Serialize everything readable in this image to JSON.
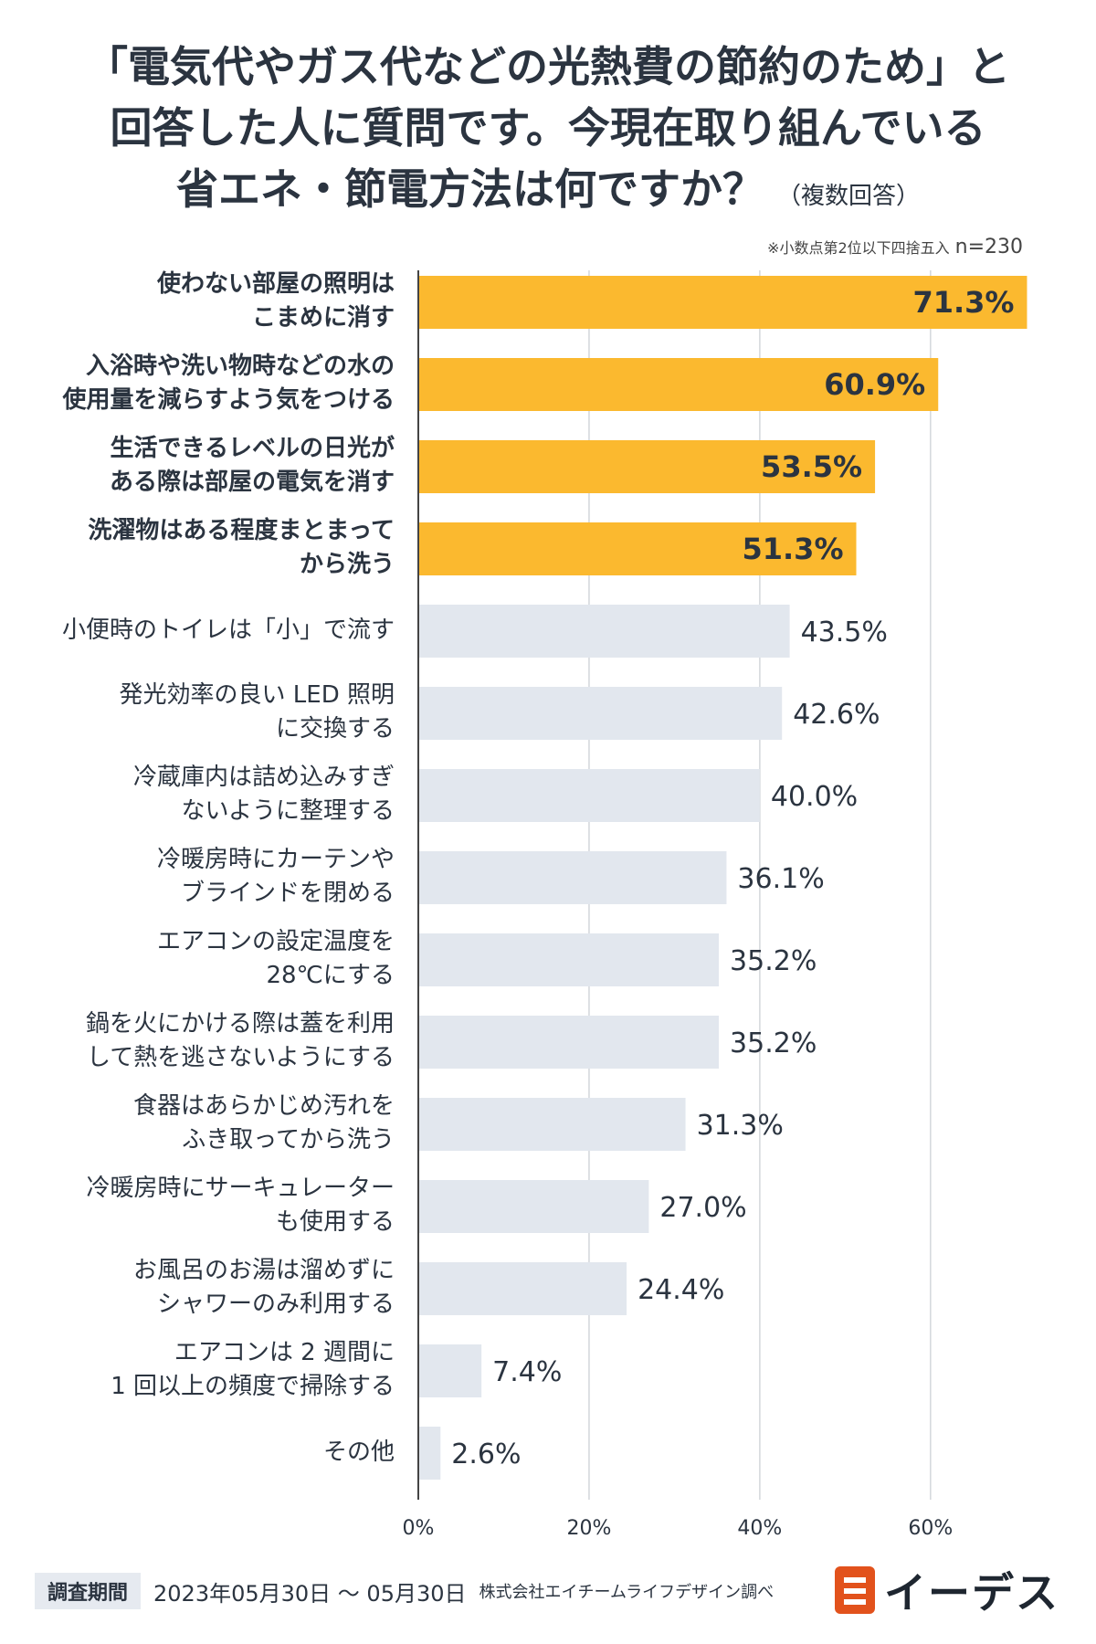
{
  "title": {
    "line1": "「電気代やガス代などの光熱費の節約のため」と",
    "line2": "回答した人に質問です。今現在取り組んでいる",
    "line3": "省エネ・節電方法は何ですか？",
    "suffix": "（複数回答）"
  },
  "note": {
    "rounding": "※小数点第2位以下四捨五入",
    "n": "n=230"
  },
  "colors": {
    "highlight": "#fbb92f",
    "normal": "#e2e7ee",
    "grid": "#d3d7dc",
    "axis": "#444444",
    "text": "#2b3440"
  },
  "chart_data": {
    "type": "bar",
    "orientation": "horizontal",
    "categories": [
      "使わない部屋の照明は\nこまめに消す",
      "入浴時や洗い物時などの水の\n使用量を減らすよう気をつける",
      "生活できるレベルの日光が\nある際は部屋の電気を消す",
      "洗濯物はある程度まとまって\nから洗う",
      "小便時のトイレは「小」で流す",
      "発光効率の良い LED 照明\nに交換する",
      "冷蔵庫内は詰め込みすぎ\nないように整理する",
      "冷暖房時にカーテンや\nブラインドを閉める",
      "エアコンの設定温度を\n28℃にする",
      "鍋を火にかける際は蓋を利用\nして熱を逃さないようにする",
      "食器はあらかじめ汚れを\nふき取ってから洗う",
      "冷暖房時にサーキュレーター\nも使用する",
      "お風呂のお湯は溜めずに\nシャワーのみ利用する",
      "エアコンは 2 週間に\n1 回以上の頻度で掃除する",
      "その他"
    ],
    "values": [
      71.3,
      60.9,
      53.5,
      51.3,
      43.5,
      42.6,
      40.0,
      36.1,
      35.2,
      35.2,
      31.3,
      27.0,
      24.4,
      7.4,
      2.6
    ],
    "value_labels": [
      "71.3%",
      "60.9%",
      "53.5%",
      "51.3%",
      "43.5%",
      "42.6%",
      "40.0%",
      "36.1%",
      "35.2%",
      "35.2%",
      "31.3%",
      "27.0%",
      "24.4%",
      "7.4%",
      "2.6%"
    ],
    "highlighted_count": 4,
    "xlim": [
      0,
      72
    ],
    "xticks": [
      0,
      20,
      40,
      60
    ],
    "xtick_labels": [
      "0%",
      "20%",
      "40%",
      "60%"
    ],
    "grid": true
  },
  "footer": {
    "period_label": "調査期間",
    "period": "2023年05月30日 〜 05月30日",
    "company": "株式会社エイチームライフデザイン調べ",
    "logo_text": "イーデス"
  }
}
